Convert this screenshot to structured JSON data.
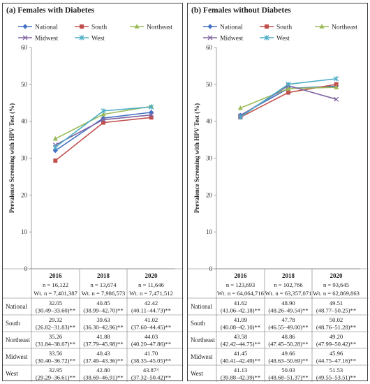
{
  "chart_data": [
    {
      "type": "line",
      "title": "(a) Females with Diabetes",
      "ylabel": "Prevalence Screening with HPV Test (%)",
      "ylim": [
        0,
        60
      ],
      "yticks": [
        "0",
        "10",
        "20",
        "30",
        "40",
        "50",
        "60"
      ],
      "categories": [
        "2016",
        "2018",
        "2020"
      ],
      "legend_position": "top",
      "series": [
        {
          "name": "National",
          "color": "#4472c4",
          "marker": "diamond",
          "values": [
            32.05,
            40.85,
            42.42
          ]
        },
        {
          "name": "South",
          "color": "#c0504d",
          "marker": "square",
          "values": [
            29.32,
            39.63,
            41.02
          ]
        },
        {
          "name": "Northeast",
          "color": "#9bbb59",
          "marker": "triangle",
          "values": [
            35.26,
            41.88,
            44.03
          ]
        },
        {
          "name": "Midwest",
          "color": "#8064a2",
          "marker": "x",
          "values": [
            33.56,
            40.43,
            41.7
          ]
        },
        {
          "name": "West",
          "color": "#4bacc6",
          "marker": "star",
          "values": [
            32.95,
            42.8,
            43.87
          ]
        }
      ],
      "table": {
        "n": [
          "n = 16,122",
          "n = 13,674",
          "n = 11,646"
        ],
        "wt": [
          "Wt. n = 7,401,387",
          "Wt. n = 7,986,573",
          "Wt. n = 7,471,512"
        ],
        "rows": [
          {
            "label": "National",
            "cells": [
              [
                "32.05",
                "(30.49–33.60)**"
              ],
              [
                "40.85",
                "(38.99–42.70)**"
              ],
              [
                "42.42",
                "(40.11–44.73)**"
              ]
            ]
          },
          {
            "label": "South",
            "cells": [
              [
                "29.32",
                "(26.82–31.83)**"
              ],
              [
                "39.63",
                "(36.30–42.96)**"
              ],
              [
                "41.02",
                "(37.60–44.45)**"
              ]
            ]
          },
          {
            "label": "Northeast",
            "cells": [
              [
                "35.26",
                "(31.84–38.67)**"
              ],
              [
                "41.88",
                "(37.79–45.98)**"
              ],
              [
                "44.03",
                "(40.20–47.86)**"
              ]
            ]
          },
          {
            "label": "Midwest",
            "cells": [
              [
                "33.56",
                "(30.40–36.72)**"
              ],
              [
                "40.43",
                "(37.49–43.36)**"
              ],
              [
                "41.70",
                "(38.35–45.05)**"
              ]
            ]
          },
          {
            "label": "West",
            "cells": [
              [
                "32.95",
                "(29.29–36.61)**"
              ],
              [
                "42.80",
                "(38.69–46.91)**"
              ],
              [
                "43.87^",
                "(37.32–50.42)**"
              ]
            ]
          }
        ]
      }
    },
    {
      "type": "line",
      "title": "(b) Females without Diabetes",
      "ylabel": "Prevalence Screening with HPV Test (%)",
      "ylim": [
        0,
        60
      ],
      "yticks": [
        "0",
        "10",
        "20",
        "30",
        "40",
        "50",
        "60"
      ],
      "categories": [
        "2016",
        "2018",
        "2020"
      ],
      "legend_position": "top",
      "series": [
        {
          "name": "National",
          "color": "#4472c4",
          "marker": "diamond",
          "values": [
            41.62,
            48.9,
            49.51
          ]
        },
        {
          "name": "South",
          "color": "#c0504d",
          "marker": "square",
          "values": [
            41.09,
            47.78,
            50.02
          ]
        },
        {
          "name": "Northeast",
          "color": "#9bbb59",
          "marker": "triangle",
          "values": [
            43.58,
            48.86,
            49.2
          ]
        },
        {
          "name": "Midwest",
          "color": "#8064a2",
          "marker": "x",
          "values": [
            41.45,
            49.66,
            45.96
          ]
        },
        {
          "name": "West",
          "color": "#4bacc6",
          "marker": "star",
          "values": [
            41.13,
            50.03,
            51.53
          ]
        }
      ],
      "table": {
        "n": [
          "n = 123,693",
          "n = 102,766",
          "n = 93,645"
        ],
        "wt": [
          "Wt. n = 64,064,716",
          "Wt. n = 63,357,071",
          "Wt. n = 62,869,863"
        ],
        "rows": [
          {
            "label": "National",
            "cells": [
              [
                "41.62",
                "(41.06–42.18)**"
              ],
              [
                "48.90",
                "(48.26–49.54)**"
              ],
              [
                "49.51",
                "(48.77–50.25)**"
              ]
            ]
          },
          {
            "label": "South",
            "cells": [
              [
                "41.09",
                "(40.08–42.10)**"
              ],
              [
                "47.78",
                "(46.55–49.00)**"
              ],
              [
                "50.02",
                "(48.76–51.28)**"
              ]
            ]
          },
          {
            "label": "Northeast",
            "cells": [
              [
                "43.58",
                "(42.42–44.75)**"
              ],
              [
                "48.86",
                "(47.45–50.28)**"
              ],
              [
                "49.20",
                "(47.99–50.42)**"
              ]
            ]
          },
          {
            "label": "Midwest",
            "cells": [
              [
                "41.45",
                "(40.41–42.49)**"
              ],
              [
                "49.66",
                "(48.63–50.69)**"
              ],
              [
                "45.96",
                "(44.75–47.16)**"
              ]
            ]
          },
          {
            "label": "West",
            "cells": [
              [
                "41.13",
                "(39.88–42.39)**"
              ],
              [
                "50.03",
                "(48.68–51.37)**"
              ],
              [
                "51.53",
                "(49.55–53.51)**"
              ]
            ]
          }
        ]
      }
    }
  ]
}
